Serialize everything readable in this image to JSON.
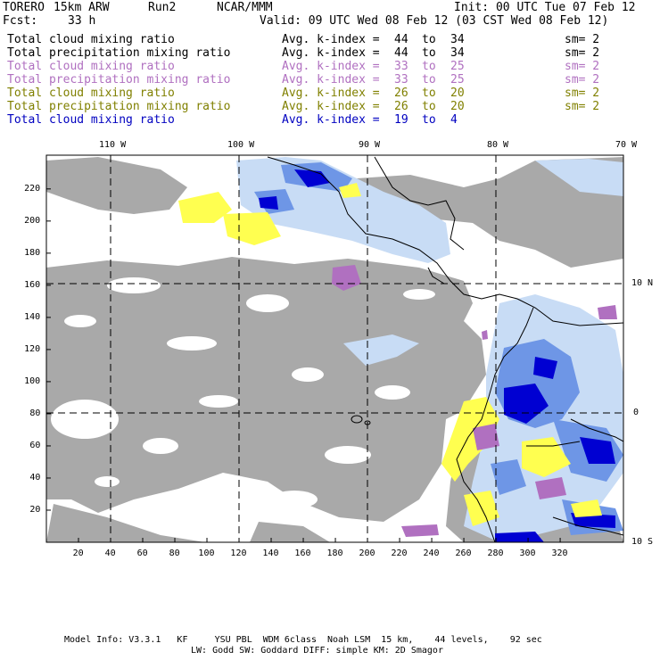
{
  "header": {
    "model": "TORERO",
    "res": "15km ARW",
    "run": "Run2",
    "org": "NCAR/MMM",
    "init": "Init: 00 UTC Tue 07 Feb 12",
    "fcst_label": "Fcst:",
    "fcst_value": "33 h",
    "valid": "Valid: 09 UTC Wed 08 Feb 12 (03 CST Wed 08 Feb 12)"
  },
  "fields": [
    {
      "name": "Total cloud mixing ratio",
      "k": "Avg. k-index =",
      "from": "44",
      "to_word": "to",
      "to": "34",
      "sm": "sm= 2",
      "color": "#000000"
    },
    {
      "name": "Total precipitation mixing ratio",
      "k": "Avg. k-index =",
      "from": "44",
      "to_word": "to",
      "to": "34",
      "sm": "sm= 2",
      "color": "#000000"
    },
    {
      "name": "Total cloud mixing ratio",
      "k": "Avg. k-index =",
      "from": "33",
      "to_word": "to",
      "to": "25",
      "sm": "sm= 2",
      "color": "#b070c0"
    },
    {
      "name": "Total precipitation mixing ratio",
      "k": "Avg. k-index =",
      "from": "33",
      "to_word": "to",
      "to": "25",
      "sm": "sm= 2",
      "color": "#b070c0"
    },
    {
      "name": "Total cloud mixing ratio",
      "k": "Avg. k-index =",
      "from": "26",
      "to_word": "to",
      "to": "20",
      "sm": "sm= 2",
      "color": "#808000"
    },
    {
      "name": "Total precipitation mixing ratio",
      "k": "Avg. k-index =",
      "from": "26",
      "to_word": "to",
      "to": "20",
      "sm": "sm= 2",
      "color": "#808000"
    },
    {
      "name": "Total cloud mixing ratio",
      "k": "Avg. k-index =",
      "from": "19",
      "to_word": "to",
      "to": "4",
      "sm": "",
      "color": "#0000c0"
    }
  ],
  "map": {
    "lon_labels": [
      "110 W",
      "100 W",
      "90 W",
      "80 W",
      "70 W"
    ],
    "lat_labels": [
      "10 N",
      "0",
      "10 S"
    ],
    "x_ticks": [
      "20",
      "40",
      "60",
      "80",
      "100",
      "120",
      "140",
      "160",
      "180",
      "200",
      "220",
      "240",
      "260",
      "280",
      "300",
      "320"
    ],
    "y_ticks": [
      "220",
      "200",
      "180",
      "160",
      "140",
      "120",
      "100",
      "80",
      "60",
      "40",
      "20"
    ],
    "colors": {
      "gray_cloud": "#a9a9a9",
      "light_blue": "#c8dcf5",
      "mid_blue": "#6e96e6",
      "dark_blue": "#0000d2",
      "yellow": "#ffff50",
      "purple": "#b070c0"
    }
  },
  "footer": {
    "line1": "Model Info: V3.3.1   KF     YSU PBL  WDM 6class  Noah LSM  15 km,    44 levels,    92 sec",
    "line2": "LW: Godd SW: Goddard DIFF: simple KM: 2D Smagor"
  }
}
